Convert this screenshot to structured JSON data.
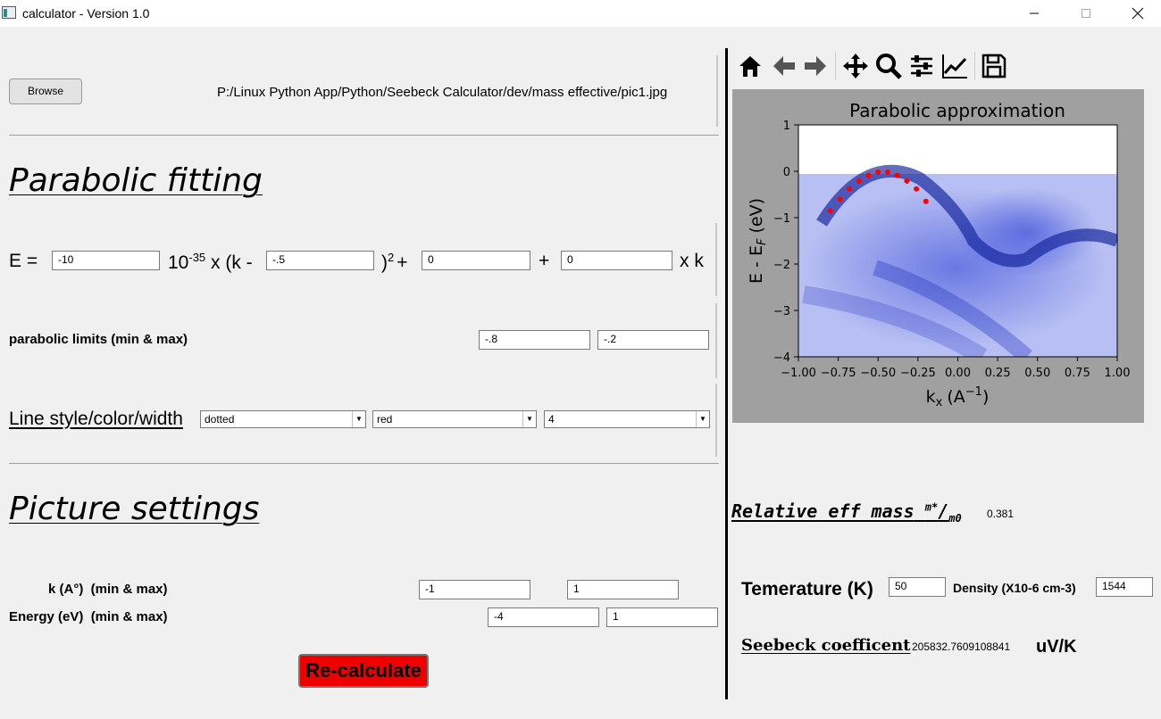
{
  "window": {
    "title": "calculator - Version 1.0"
  },
  "file": {
    "browse_label": "Browse",
    "path": "P:/Linux Python App/Python/Seebeck Calculator/dev/mass effective/pic1.jpg"
  },
  "parabolic": {
    "heading": "Parabolic fitting",
    "eq_prefix": "E =",
    "coef_value": "-10",
    "eq_times": "10",
    "eq_exp": "-35",
    "eq_xk": " x (k -",
    "k0_value": "-.5",
    "eq_close": ")",
    "eq_sq": "2",
    "eq_plus1": "+",
    "c1_value": "0",
    "eq_plus2": "+",
    "c2_value": "0",
    "eq_suffix": "x k",
    "limits_label": "parabolic limits (min & max)",
    "limit_min": "-.8",
    "limit_max": "-.2",
    "line_label": "Line style/color/width",
    "style_value": "dotted",
    "color_value": "red",
    "width_value": "4"
  },
  "picture": {
    "heading": "Picture settings",
    "k_label": "k (A°)  (min & max)",
    "k_min": "-1",
    "k_max": "1",
    "energy_label": "Energy (eV)  (min & max)",
    "e_min": "-4",
    "e_max": "1",
    "recalc_label": "Re-calculate"
  },
  "toolbar": {
    "icons": [
      "home-icon",
      "back-arrow-icon",
      "forward-arrow-icon",
      "pan-icon",
      "zoom-icon",
      "configure-subplots-icon",
      "edit-axis-icon",
      "save-icon"
    ]
  },
  "chart_data": {
    "type": "scatter",
    "title": "Parabolic approximation",
    "xlabel": "k",
    "xlabel_sub": "x",
    "xlabel_unit": "(A",
    "xlabel_exp": "−1",
    "xlabel_close": ")",
    "ylabel": "E - E",
    "ylabel_sub": "F",
    "ylabel_unit": " (eV)",
    "xlim": [
      -1.0,
      1.0
    ],
    "ylim": [
      -4,
      1
    ],
    "xticks": [
      "−1.00",
      "−0.75",
      "−0.50",
      "−0.25",
      "0.00",
      "0.25",
      "0.50",
      "0.75",
      "1.00"
    ],
    "yticks": [
      "1",
      "0",
      "−1",
      "−2",
      "−3",
      "−4"
    ],
    "series": [
      {
        "x": [
          -0.8,
          -0.74,
          -0.68,
          -0.62,
          -0.56,
          -0.5,
          -0.44,
          -0.38,
          -0.32,
          -0.26,
          -0.2
        ],
        "y": [
          -0.85,
          -0.6,
          -0.38,
          -0.21,
          -0.09,
          -0.02,
          -0.02,
          -0.09,
          -0.21,
          -0.38,
          -0.65
        ]
      }
    ],
    "colors": {
      "marker": "#ff0000",
      "background": "#a0a0a0",
      "band": "#2a3fd6"
    }
  },
  "results": {
    "mass_label": "Relative eff mass",
    "mass_sup": "m*",
    "mass_slash": "/",
    "mass_sub": "m0",
    "mass_value": "0.381",
    "temp_label": "Temerature (K)",
    "temp_value": "50",
    "density_label": "Density (X10-6 cm-3)",
    "density_value": "1544",
    "seebeck_label": "Seebeck coefficent",
    "seebeck_value": "205832.7609108841",
    "seebeck_unit": "uV/K"
  }
}
